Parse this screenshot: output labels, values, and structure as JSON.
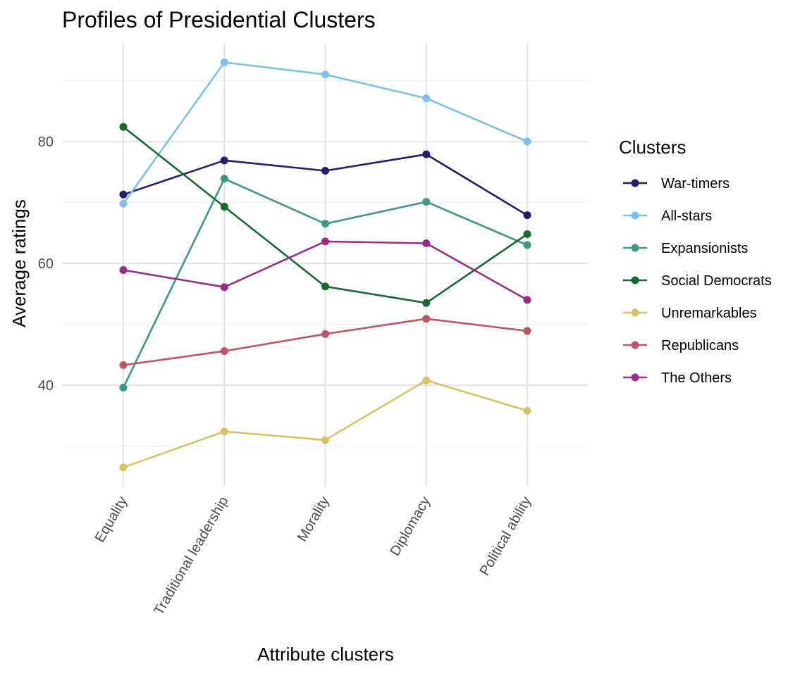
{
  "chart_data": {
    "type": "line",
    "title": "Profiles of Presidential Clusters",
    "xlabel": "Attribute clusters",
    "ylabel": "Average ratings",
    "categories": [
      "Equality",
      "Traditional leadership",
      "Morality",
      "Diplomacy",
      "Political ability"
    ],
    "yticks": [
      40,
      60,
      80
    ],
    "ylim": [
      24,
      96
    ],
    "grid": true,
    "legend": {
      "title": "Clusters",
      "position": "right"
    },
    "series": [
      {
        "name": "War-timers",
        "color": "#231C6F",
        "values": [
          71.3,
          76.9,
          75.2,
          77.9,
          67.9
        ]
      },
      {
        "name": "All-stars",
        "color": "#7BC1E8",
        "values": [
          69.8,
          93.0,
          91.0,
          87.1,
          80.0
        ]
      },
      {
        "name": "Expansionists",
        "color": "#3A9987",
        "values": [
          39.6,
          73.9,
          66.5,
          70.1,
          63.0
        ]
      },
      {
        "name": "Social Democrats",
        "color": "#156B2E",
        "values": [
          82.4,
          69.3,
          56.2,
          53.5,
          64.8
        ]
      },
      {
        "name": "Unremarkables",
        "color": "#D6C463",
        "values": [
          26.5,
          32.4,
          31.0,
          40.8,
          35.8
        ]
      },
      {
        "name": "Republicans",
        "color": "#C05466",
        "values": [
          43.3,
          45.6,
          48.4,
          50.9,
          48.9
        ]
      },
      {
        "name": "The Others",
        "color": "#972F88",
        "values": [
          58.9,
          56.1,
          63.6,
          63.3,
          54.0
        ]
      }
    ]
  }
}
